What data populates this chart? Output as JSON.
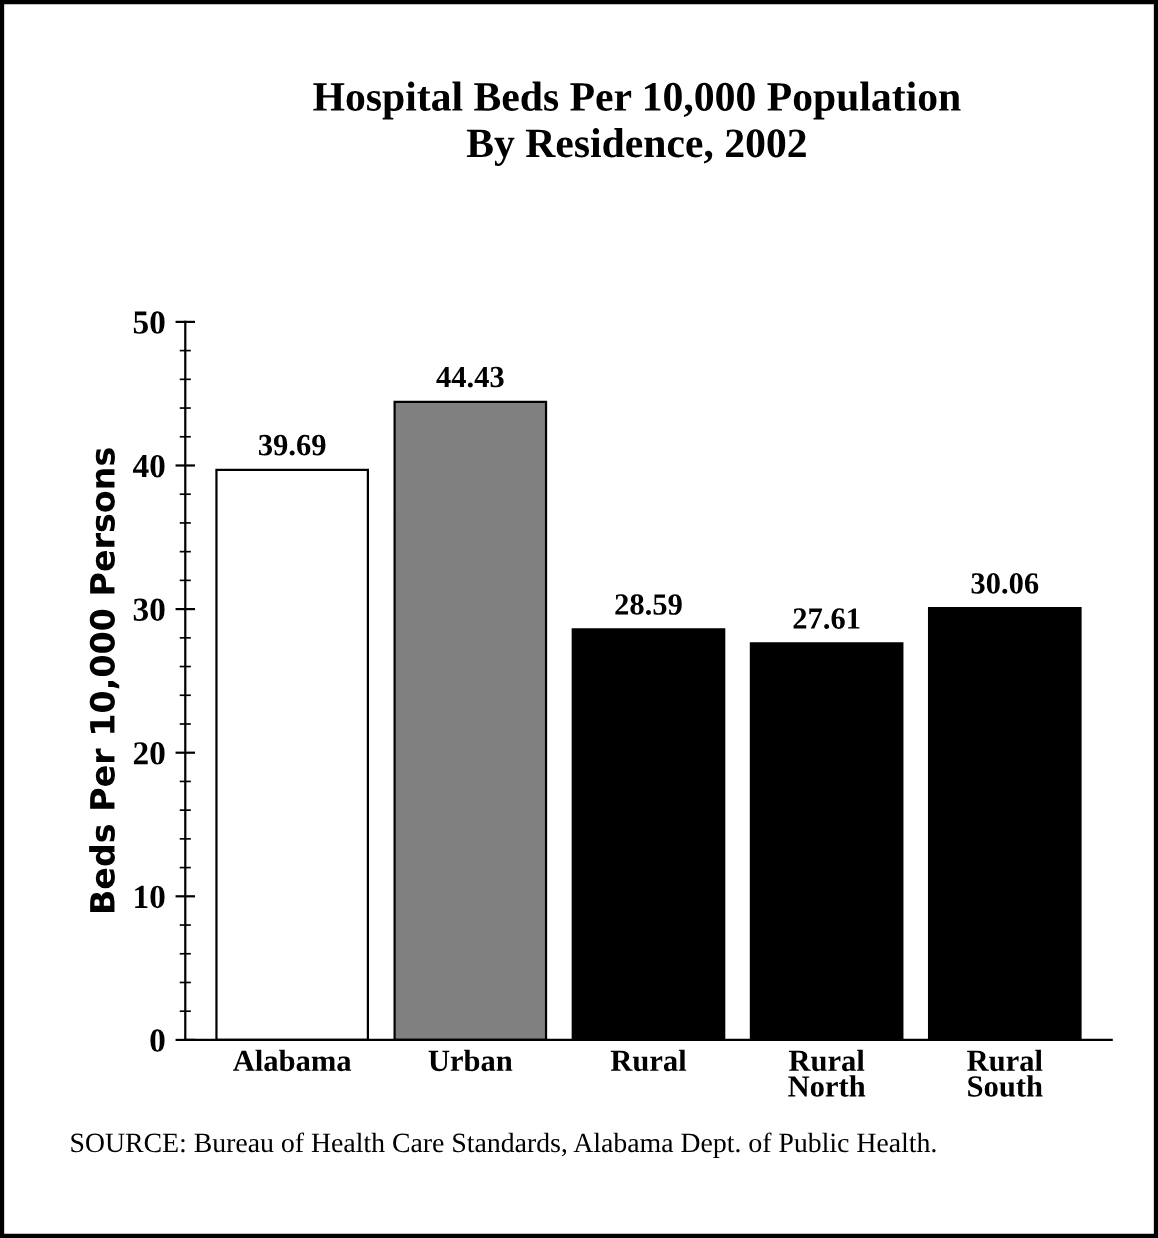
{
  "chart_data": {
    "type": "bar",
    "title": "Hospital Beds Per 10,000 Population\nBy Residence, 2002",
    "ylabel": "Beds Per 10,000 Persons",
    "categories": [
      "Alabama",
      "Urban",
      "Rural",
      "Rural\nNorth",
      "Rural\nSouth"
    ],
    "values": [
      39.69,
      44.43,
      28.59,
      27.61,
      30.06
    ],
    "colors": [
      "#ffffff",
      "#808080",
      "#000000",
      "#000000",
      "#000000"
    ],
    "ylim": [
      0,
      50
    ],
    "yticks": [
      0,
      10,
      20,
      30,
      40,
      50
    ],
    "data_labels": true,
    "grid": false,
    "annotations": [
      "SOURCE: Bureau of Health Care Standards, Alabama Dept. of Public Health."
    ]
  }
}
